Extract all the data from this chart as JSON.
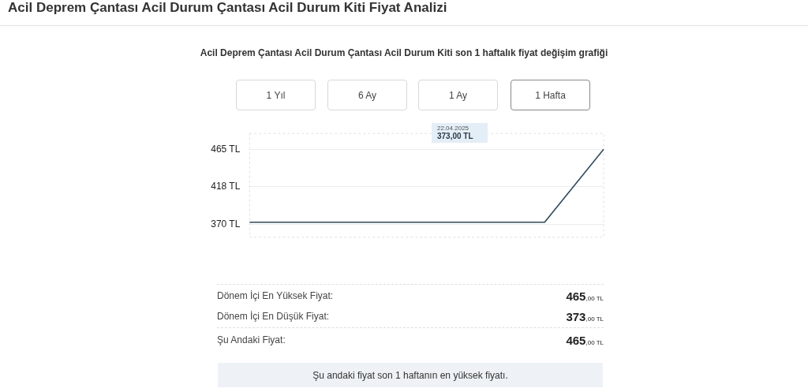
{
  "chart_data": {
    "type": "line",
    "title": "Acil Deprem Çantası Acil Durum Çantası Acil Durum Kiti Fiyat Analizi",
    "subtitle": "Acil Deprem Çantası Acil Durum Çantası Acil Durum Kiti son 1 haftalık fiyat değişim grafiği",
    "categories": [
      null,
      null,
      null,
      null,
      null,
      null,
      null
    ],
    "series": [
      {
        "color": "#2f4858",
        "values": [
          373,
          373,
          373,
          373,
          373,
          373,
          465
        ]
      }
    ],
    "ylim": [
      354,
      485
    ],
    "yticks": [
      {
        "value": 370,
        "label": "370 TL"
      },
      {
        "value": 418,
        "label": "418 TL"
      },
      {
        "value": 465,
        "label": "465 TL"
      }
    ],
    "tick_labels": "y",
    "grid": "y",
    "marker": "none",
    "line_style": "solid",
    "legend": false,
    "annotations": [
      "22.04.2025",
      "373,00 TL",
      "1 Yıl",
      "6 Ay",
      "1 Ay",
      "1 Hafta",
      "Dönem İçi En Yüksek Fiyat:",
      "465,00 TL",
      "Dönem İçi En Düşük Fiyat:",
      "373,00 TL",
      "Şu Andaki Fiyat:",
      "465,00 TL",
      "Şu andaki fiyat son 1 haftanın en yüksek fiyatı."
    ]
  }
}
